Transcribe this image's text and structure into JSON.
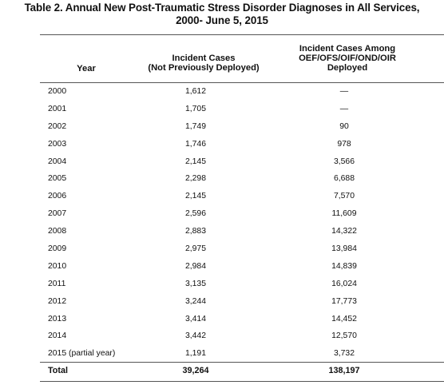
{
  "title": {
    "line1": "Table 2. Annual New Post-Traumatic Stress Disorder Diagnoses in All Services,",
    "line2": "2000- June 5, 2015"
  },
  "headers": {
    "year": "Year",
    "col1_line1": "Incident Cases",
    "col1_line2": "(Not Previously Deployed)",
    "col2_line1": "Incident Cases Among",
    "col2_line2": "OEF/OFS/OIF/OND/OIR",
    "col2_line3": "Deployed"
  },
  "rows": [
    {
      "year": "2000",
      "not_deployed": "1,612",
      "deployed": "—"
    },
    {
      "year": "2001",
      "not_deployed": "1,705",
      "deployed": "—"
    },
    {
      "year": "2002",
      "not_deployed": "1,749",
      "deployed": "90"
    },
    {
      "year": "2003",
      "not_deployed": "1,746",
      "deployed": "978"
    },
    {
      "year": "2004",
      "not_deployed": "2,145",
      "deployed": "3,566"
    },
    {
      "year": "2005",
      "not_deployed": "2,298",
      "deployed": "6,688"
    },
    {
      "year": "2006",
      "not_deployed": "2,145",
      "deployed": "7,570"
    },
    {
      "year": "2007",
      "not_deployed": "2,596",
      "deployed": "11,609"
    },
    {
      "year": "2008",
      "not_deployed": "2,883",
      "deployed": "14,322"
    },
    {
      "year": "2009",
      "not_deployed": "2,975",
      "deployed": "13,984"
    },
    {
      "year": "2010",
      "not_deployed": "2,984",
      "deployed": "14,839"
    },
    {
      "year": "2011",
      "not_deployed": "3,135",
      "deployed": "16,024"
    },
    {
      "year": "2012",
      "not_deployed": "3,244",
      "deployed": "17,773"
    },
    {
      "year": "2013",
      "not_deployed": "3,414",
      "deployed": "14,452"
    },
    {
      "year": "2014",
      "not_deployed": "3,442",
      "deployed": "12,570"
    },
    {
      "year": "2015 (partial year)",
      "not_deployed": "1,191",
      "deployed": "3,732"
    }
  ],
  "total": {
    "label": "Total",
    "not_deployed": "39,264",
    "deployed": "138,197"
  }
}
